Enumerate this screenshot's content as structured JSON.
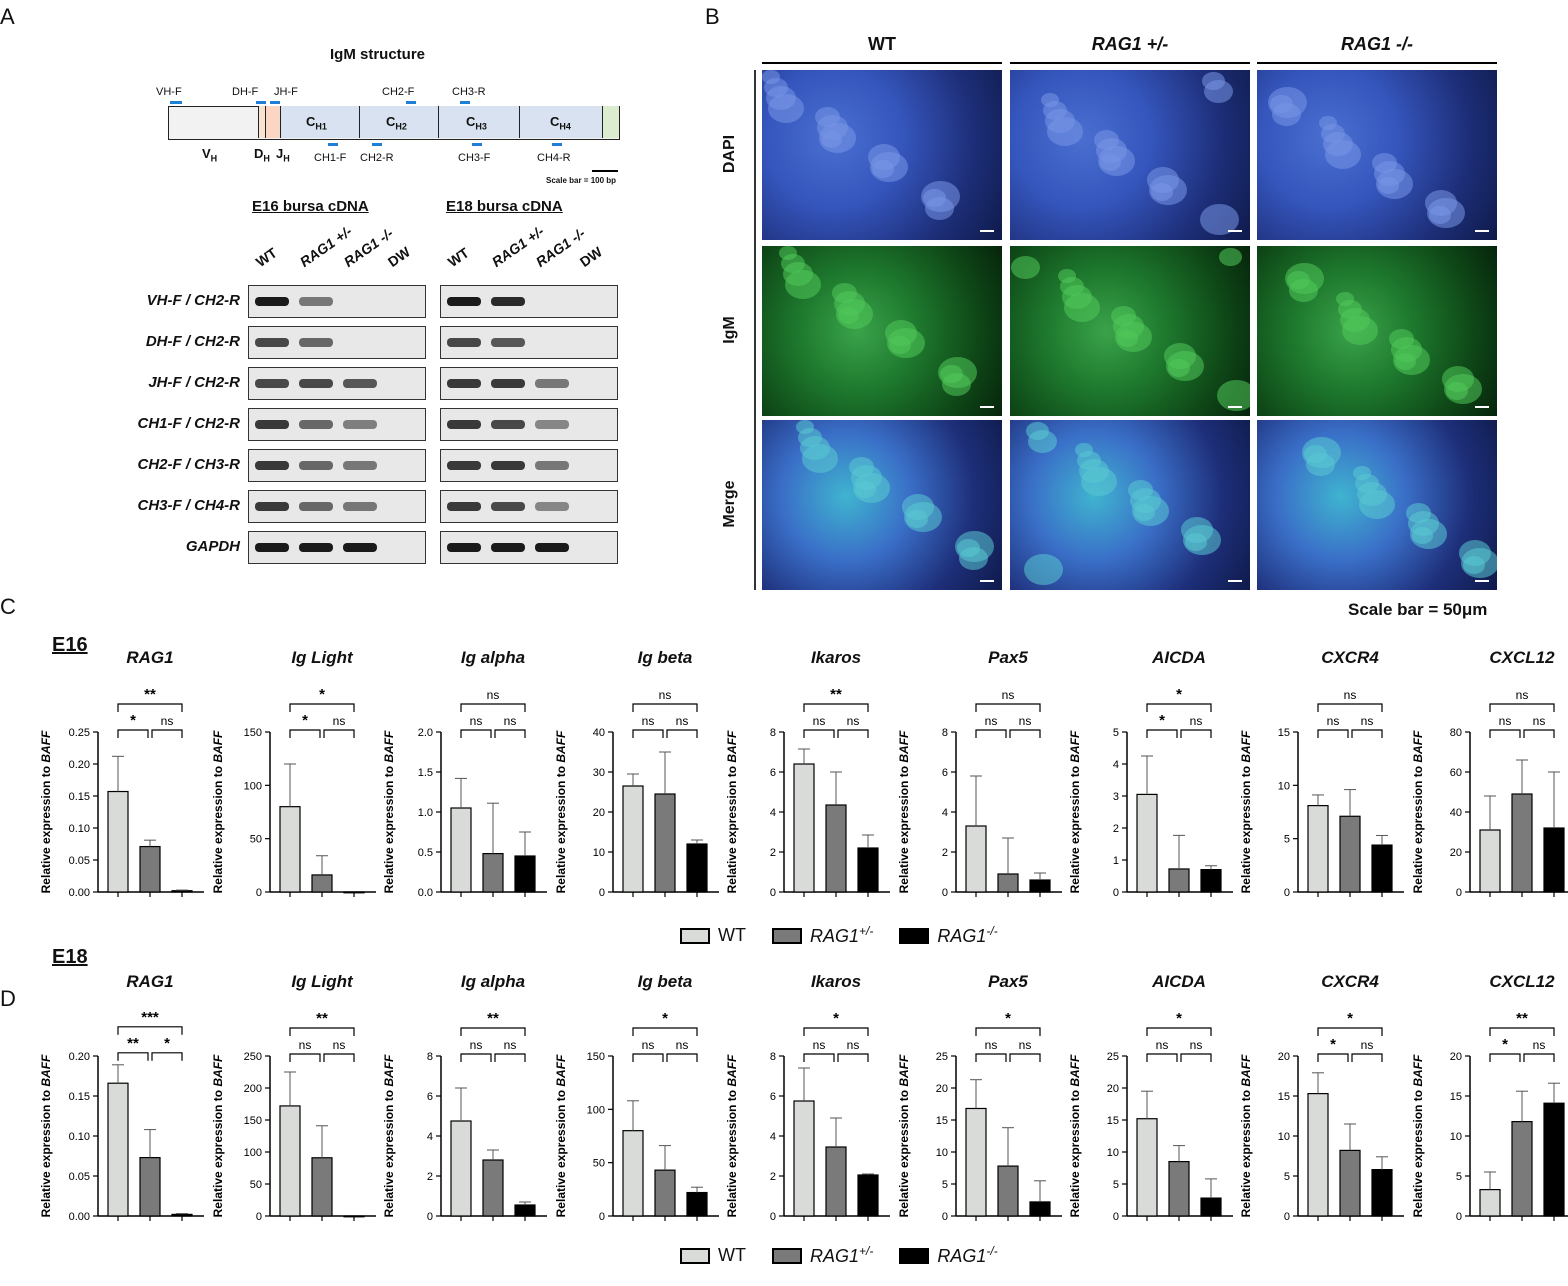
{
  "panels": {
    "a": "A",
    "b": "B",
    "c": "C",
    "d": "D"
  },
  "igm": {
    "title": "IgM structure",
    "primers_top": [
      "VH-F",
      "DH-F",
      "JH-F",
      "CH2-F",
      "CH3-R"
    ],
    "primers_bottom": [
      "CH1-F",
      "CH2-R",
      "CH3-F",
      "CH4-R"
    ],
    "seg_v": "V",
    "seg_v_sub": "H",
    "seg_d": "D",
    "seg_d_sub": "H",
    "seg_j": "J",
    "seg_j_sub": "H",
    "domains": [
      {
        "main": "C",
        "sub": "H1"
      },
      {
        "main": "C",
        "sub": "H2"
      },
      {
        "main": "C",
        "sub": "H3"
      },
      {
        "main": "C",
        "sub": "H4"
      }
    ],
    "scale": "Scale bar = 100 bp"
  },
  "gel": {
    "e16_title": "E16 bursa cDNA",
    "e18_title": "E18 bursa cDNA",
    "lanes": [
      "WT",
      "RAG1 +/-",
      "RAG1 -/-",
      "DW"
    ],
    "rows": [
      "VH-F / CH2-R",
      "DH-F / CH2-R",
      "JH-F / CH2-R",
      "CH1-F / CH2-R",
      "CH2-F / CH3-R",
      "CH3-F / CH4-R",
      "GAPDH"
    ],
    "e16_bands": [
      [
        1,
        0.4,
        0,
        0
      ],
      [
        0.7,
        0.5,
        0,
        0
      ],
      [
        0.7,
        0.7,
        0.6,
        0
      ],
      [
        0.8,
        0.5,
        0.35,
        0
      ],
      [
        0.8,
        0.5,
        0.4,
        0
      ],
      [
        0.8,
        0.5,
        0.4,
        0
      ],
      [
        1,
        1,
        1,
        0
      ]
    ],
    "e18_bands": [
      [
        1,
        0.9,
        0,
        0
      ],
      [
        0.7,
        0.6,
        0,
        0
      ],
      [
        0.8,
        0.8,
        0.4,
        0
      ],
      [
        0.8,
        0.7,
        0.3,
        0
      ],
      [
        0.8,
        0.8,
        0.4,
        0
      ],
      [
        0.8,
        0.7,
        0.3,
        0
      ],
      [
        1,
        1,
        1,
        0
      ]
    ]
  },
  "micrographs": {
    "columns": [
      "WT",
      "RAG1 +/-",
      "RAG1 -/-"
    ],
    "rows": [
      "DAPI",
      "IgM",
      "Merge"
    ],
    "scale": "Scale bar = 50μm"
  },
  "sections": {
    "e16": "E16",
    "e18": "E18"
  },
  "ylabel_prefix": "Relative expression to ",
  "ylabel_gene": "BAFF",
  "legend": [
    {
      "label": "WT",
      "sup": "",
      "color": "#d9dbd8"
    },
    {
      "label": "RAG1",
      "sup": "+/-",
      "color": "#7a7a7a"
    },
    {
      "label": "RAG1",
      "sup": "-/-",
      "color": "#000000"
    }
  ],
  "chart_data": [
    {
      "type": "bar",
      "title": "RAG1",
      "stage": "E16",
      "categories": [
        "WT",
        "RAG1+/-",
        "RAG1-/-"
      ],
      "values": [
        0.157,
        0.071,
        0.002
      ],
      "errors": [
        0.055,
        0.01,
        0.001
      ],
      "yticks": [
        "0.00",
        "0.05",
        "0.10",
        "0.15",
        "0.20",
        "0.25"
      ],
      "ylim": [
        0,
        0.25
      ],
      "sig": {
        "a": "*",
        "b": "ns",
        "c": "**"
      }
    },
    {
      "type": "bar",
      "title": "Ig Light",
      "stage": "E16",
      "categories": [
        "WT",
        "RAG1+/-",
        "RAG1-/-"
      ],
      "values": [
        80,
        16,
        0
      ],
      "errors": [
        40,
        18,
        0
      ],
      "yticks": [
        "0",
        "50",
        "100",
        "150"
      ],
      "ylim": [
        0,
        150
      ],
      "sig": {
        "a": "*",
        "b": "ns",
        "c": "*"
      }
    },
    {
      "type": "bar",
      "title": "Ig alpha",
      "stage": "E16",
      "categories": [
        "WT",
        "RAG1+/-",
        "RAG1-/-"
      ],
      "values": [
        1.05,
        0.48,
        0.45
      ],
      "errors": [
        0.37,
        0.63,
        0.3
      ],
      "yticks": [
        "0.0",
        "0.5",
        "1.0",
        "1.5",
        "2.0"
      ],
      "ylim": [
        0,
        2
      ],
      "sig": {
        "a": "ns",
        "b": "ns",
        "c": "ns"
      }
    },
    {
      "type": "bar",
      "title": "Ig beta",
      "stage": "E16",
      "categories": [
        "WT",
        "RAG1+/-",
        "RAG1-/-"
      ],
      "values": [
        26.5,
        24.5,
        12
      ],
      "errors": [
        3,
        10.5,
        1
      ],
      "yticks": [
        "0",
        "10",
        "20",
        "30",
        "40"
      ],
      "ylim": [
        0,
        40
      ],
      "sig": {
        "a": "ns",
        "b": "ns",
        "c": "ns"
      }
    },
    {
      "type": "bar",
      "title": "Ikaros",
      "stage": "E16",
      "categories": [
        "WT",
        "RAG1+/-",
        "RAG1-/-"
      ],
      "values": [
        6.4,
        4.35,
        2.2
      ],
      "errors": [
        0.75,
        1.65,
        0.65
      ],
      "yticks": [
        "0",
        "2",
        "4",
        "6",
        "8"
      ],
      "ylim": [
        0,
        8
      ],
      "sig": {
        "a": "ns",
        "b": "ns",
        "c": "**"
      }
    },
    {
      "type": "bar",
      "title": "Pax5",
      "stage": "E16",
      "categories": [
        "WT",
        "RAG1+/-",
        "RAG1-/-"
      ],
      "values": [
        3.3,
        0.9,
        0.6
      ],
      "errors": [
        2.5,
        1.8,
        0.35
      ],
      "yticks": [
        "0",
        "2",
        "4",
        "6",
        "8"
      ],
      "ylim": [
        0,
        8
      ],
      "sig": {
        "a": "ns",
        "b": "ns",
        "c": "ns"
      }
    },
    {
      "type": "bar",
      "title": "AICDA",
      "stage": "E16",
      "categories": [
        "WT",
        "RAG1+/-",
        "RAG1-/-"
      ],
      "values": [
        3.05,
        0.72,
        0.7
      ],
      "errors": [
        1.2,
        1.05,
        0.12
      ],
      "yticks": [
        "0",
        "1",
        "2",
        "3",
        "4",
        "5"
      ],
      "ylim": [
        0,
        5
      ],
      "sig": {
        "a": "*",
        "b": "ns",
        "c": "*"
      }
    },
    {
      "type": "bar",
      "title": "CXCR4",
      "stage": "E16",
      "categories": [
        "WT",
        "RAG1+/-",
        "RAG1-/-"
      ],
      "values": [
        8.1,
        7.1,
        4.4
      ],
      "errors": [
        1,
        2.5,
        0.9
      ],
      "yticks": [
        "0",
        "5",
        "10",
        "15"
      ],
      "ylim": [
        0,
        15
      ],
      "sig": {
        "a": "ns",
        "b": "ns",
        "c": "ns"
      }
    },
    {
      "type": "bar",
      "title": "CXCL12",
      "stage": "E16",
      "categories": [
        "WT",
        "RAG1+/-",
        "RAG1-/-"
      ],
      "values": [
        31,
        49,
        32
      ],
      "errors": [
        17,
        17,
        28
      ],
      "yticks": [
        "0",
        "20",
        "40",
        "60",
        "80"
      ],
      "ylim": [
        0,
        80
      ],
      "sig": {
        "a": "ns",
        "b": "ns",
        "c": "ns"
      }
    },
    {
      "type": "bar",
      "title": "RAG1",
      "stage": "E18",
      "categories": [
        "WT",
        "RAG1+/-",
        "RAG1-/-"
      ],
      "values": [
        0.166,
        0.073,
        0.002
      ],
      "errors": [
        0.023,
        0.035,
        0.001
      ],
      "yticks": [
        "0.00",
        "0.05",
        "0.10",
        "0.15",
        "0.20"
      ],
      "ylim": [
        0,
        0.2
      ],
      "sig": {
        "a": "**",
        "b": "*",
        "c": "***"
      }
    },
    {
      "type": "bar",
      "title": "Ig Light",
      "stage": "E18",
      "categories": [
        "WT",
        "RAG1+/-",
        "RAG1-/-"
      ],
      "values": [
        172,
        91,
        0
      ],
      "errors": [
        53,
        50,
        0
      ],
      "yticks": [
        "0",
        "50",
        "100",
        "150",
        "200",
        "250"
      ],
      "ylim": [
        0,
        250
      ],
      "sig": {
        "a": "ns",
        "b": "ns",
        "c": "**"
      }
    },
    {
      "type": "bar",
      "title": "Ig alpha",
      "stage": "E18",
      "categories": [
        "WT",
        "RAG1+/-",
        "RAG1-/-"
      ],
      "values": [
        4.75,
        2.8,
        0.55
      ],
      "errors": [
        1.65,
        0.5,
        0.15
      ],
      "yticks": [
        "0",
        "2",
        "4",
        "6",
        "8"
      ],
      "ylim": [
        0,
        8
      ],
      "sig": {
        "a": "ns",
        "b": "ns",
        "c": "**"
      }
    },
    {
      "type": "bar",
      "title": "Ig beta",
      "stage": "E18",
      "categories": [
        "WT",
        "RAG1+/-",
        "RAG1-/-"
      ],
      "values": [
        80,
        43,
        22
      ],
      "errors": [
        28,
        23,
        5
      ],
      "yticks": [
        "0",
        "50",
        "100",
        "150"
      ],
      "ylim": [
        0,
        150
      ],
      "sig": {
        "a": "ns",
        "b": "ns",
        "c": "*"
      }
    },
    {
      "type": "bar",
      "title": "Ikaros",
      "stage": "E18",
      "categories": [
        "WT",
        "RAG1+/-",
        "RAG1-/-"
      ],
      "values": [
        5.75,
        3.45,
        2.05
      ],
      "errors": [
        1.65,
        1.45,
        0.05
      ],
      "yticks": [
        "0",
        "2",
        "4",
        "6",
        "8"
      ],
      "ylim": [
        0,
        8
      ],
      "sig": {
        "a": "ns",
        "b": "ns",
        "c": "*"
      }
    },
    {
      "type": "bar",
      "title": "Pax5",
      "stage": "E18",
      "categories": [
        "WT",
        "RAG1+/-",
        "RAG1-/-"
      ],
      "values": [
        16.8,
        7.8,
        2.2
      ],
      "errors": [
        4.5,
        6,
        3.3
      ],
      "yticks": [
        "0",
        "5",
        "10",
        "15",
        "20",
        "25"
      ],
      "ylim": [
        0,
        25
      ],
      "sig": {
        "a": "ns",
        "b": "ns",
        "c": "*"
      }
    },
    {
      "type": "bar",
      "title": "AICDA",
      "stage": "E18",
      "categories": [
        "WT",
        "RAG1+/-",
        "RAG1-/-"
      ],
      "values": [
        15.2,
        8.5,
        2.8
      ],
      "errors": [
        4.3,
        2.5,
        3
      ],
      "yticks": [
        "0",
        "5",
        "10",
        "15",
        "20",
        "25"
      ],
      "ylim": [
        0,
        25
      ],
      "sig": {
        "a": "ns",
        "b": "ns",
        "c": "*"
      }
    },
    {
      "type": "bar",
      "title": "CXCR4",
      "stage": "E18",
      "categories": [
        "WT",
        "RAG1+/-",
        "RAG1-/-"
      ],
      "values": [
        15.3,
        8.2,
        5.8
      ],
      "errors": [
        2.6,
        3.3,
        1.6
      ],
      "yticks": [
        "0",
        "5",
        "10",
        "15",
        "20"
      ],
      "ylim": [
        0,
        20
      ],
      "sig": {
        "a": "*",
        "b": "ns",
        "c": "*"
      }
    },
    {
      "type": "bar",
      "title": "CXCL12",
      "stage": "E18",
      "categories": [
        "WT",
        "RAG1+/-",
        "RAG1-/-"
      ],
      "values": [
        3.3,
        11.8,
        14.1
      ],
      "errors": [
        2.2,
        3.8,
        2.5
      ],
      "yticks": [
        "0",
        "5",
        "10",
        "15",
        "20"
      ],
      "ylim": [
        0,
        20
      ],
      "sig": {
        "a": "*",
        "b": "ns",
        "c": "**"
      }
    }
  ]
}
